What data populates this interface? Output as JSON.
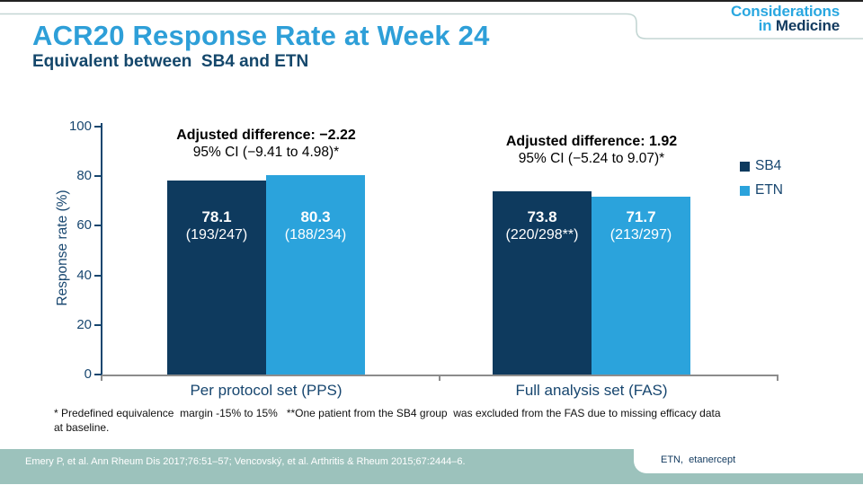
{
  "slide": {
    "title": "ACR20 Response Rate at Week 24",
    "subtitle": "Equivalent between  SB4 and ETN",
    "logo": {
      "line1": "Considerations",
      "line2_prefix": "in ",
      "line2_main": "Medicine"
    },
    "footnote": "* Predefined equivalence  margin -15% to 15%   **One patient from the SB4 group  was excluded from the FAS due to missing efficacy data\nat baseline.",
    "citation": "Emery P, et al. Ann Rheum Dis 2017;76:51–57; Vencovský, et al. Arthritis & Rheum 2015;67:2444–6.",
    "abbreviation": "ETN,  etanercept"
  },
  "colors": {
    "sb4": "#0E3A5E",
    "etn": "#2BA3DC",
    "title_blue": "#2E9FD8",
    "navy_text": "#17466F",
    "teal_band": "#9CC2BC",
    "axis_gray": "#8C8C8C"
  },
  "chart_data": {
    "type": "bar",
    "title": "",
    "xlabel": "",
    "ylabel": "Response rate (%)",
    "ylim": [
      0,
      100
    ],
    "yticks": [
      0,
      20,
      40,
      60,
      80,
      100
    ],
    "grid": false,
    "legend_position": "right",
    "categories": [
      "Per protocol set (PPS)",
      "Full analysis set (FAS)"
    ],
    "series": [
      {
        "name": "SB4",
        "color": "#0E3A5E",
        "values": [
          78.1,
          73.8
        ],
        "labels": [
          {
            "value": "78.1",
            "fraction": "(193/247)"
          },
          {
            "value": "73.8",
            "fraction": "(220/298**)"
          }
        ]
      },
      {
        "name": "ETN",
        "color": "#2BA3DC",
        "values": [
          80.3,
          71.7
        ],
        "labels": [
          {
            "value": "80.3",
            "fraction": "(188/234)"
          },
          {
            "value": "71.7",
            "fraction": "(213/297)"
          }
        ]
      }
    ],
    "annotations": [
      {
        "line1": "Adjusted difference: −2.22",
        "line2": "95% CI (−9.41 to 4.98)*"
      },
      {
        "line1": "Adjusted difference: 1.92",
        "line2": "95% CI (−5.24 to 9.07)*"
      }
    ]
  }
}
